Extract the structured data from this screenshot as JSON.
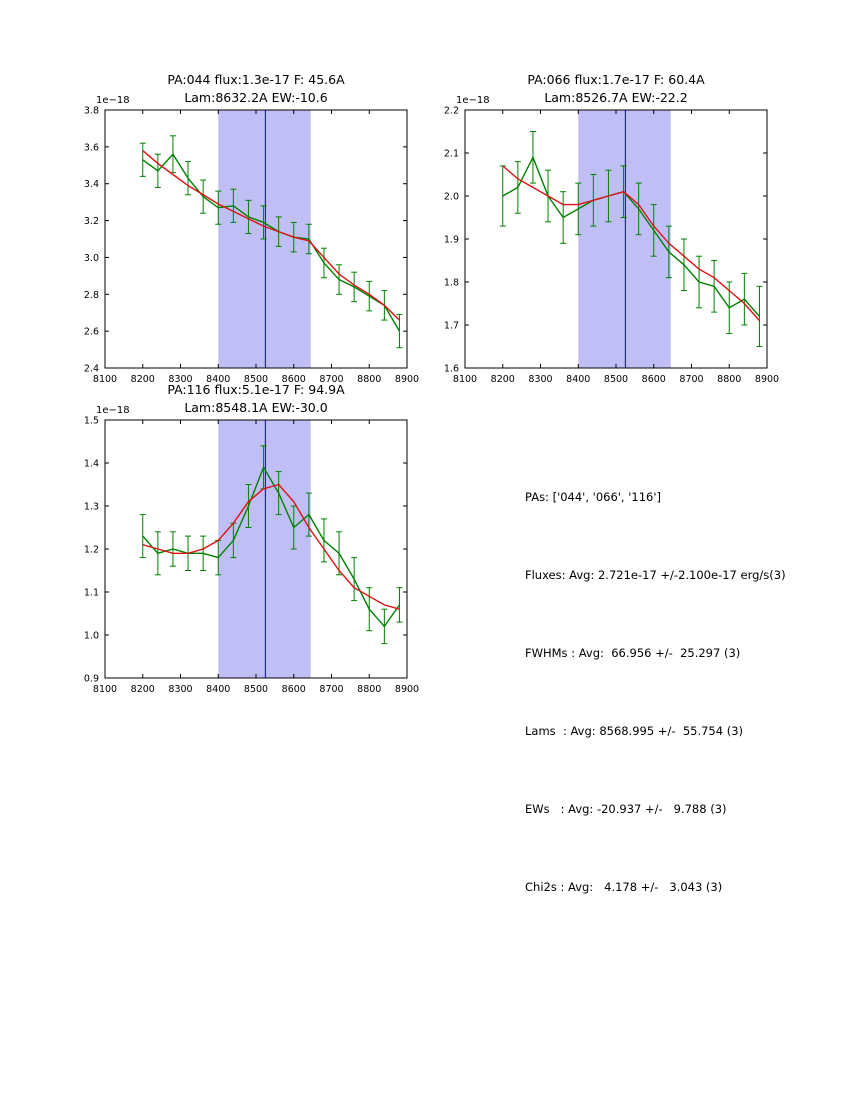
{
  "colors": {
    "band": "#bfbff5",
    "vline": "#2222bb",
    "axes": "#000000",
    "spectrum": "#008000",
    "fit": "#dd1111"
  },
  "chart_data": [
    {
      "id": "pa044",
      "type": "line",
      "title1": "PA:044 flux:1.3e-17 F: 45.6A",
      "title2": "Lam:8632.2A EW:-10.6",
      "y_offset_label": "1e−18",
      "xlabel": "",
      "ylabel": "",
      "xlim": [
        8100,
        8900
      ],
      "ylim": [
        2.4,
        3.8
      ],
      "x_ticks": [
        8100,
        8200,
        8300,
        8400,
        8500,
        8600,
        8700,
        8800,
        8900
      ],
      "y_ticks": [
        2.4,
        2.6,
        2.8,
        3.0,
        3.2,
        3.4,
        3.6,
        3.8
      ],
      "band": [
        8400,
        8645
      ],
      "vline": 8525,
      "x": [
        8200,
        8240,
        8280,
        8320,
        8360,
        8400,
        8440,
        8480,
        8520,
        8560,
        8600,
        8640,
        8680,
        8720,
        8760,
        8800,
        8840,
        8880
      ],
      "series": [
        {
          "name": "spectrum",
          "values": [
            3.53,
            3.47,
            3.56,
            3.43,
            3.33,
            3.27,
            3.28,
            3.22,
            3.19,
            3.14,
            3.11,
            3.1,
            2.97,
            2.88,
            2.84,
            2.79,
            2.74,
            2.6
          ],
          "err": [
            0.09,
            0.09,
            0.1,
            0.09,
            0.09,
            0.09,
            0.09,
            0.09,
            0.09,
            0.08,
            0.08,
            0.08,
            0.08,
            0.08,
            0.08,
            0.08,
            0.08,
            0.09
          ]
        },
        {
          "name": "fit",
          "values": [
            3.58,
            3.51,
            3.45,
            3.39,
            3.34,
            3.29,
            3.25,
            3.21,
            3.17,
            3.14,
            3.11,
            3.09,
            3.0,
            2.91,
            2.85,
            2.8,
            2.74,
            2.66
          ]
        }
      ]
    },
    {
      "id": "pa066",
      "type": "line",
      "title1": "PA:066 flux:1.7e-17 F: 60.4A",
      "title2": "Lam:8526.7A EW:-22.2",
      "y_offset_label": "1e−18",
      "xlabel": "",
      "ylabel": "",
      "xlim": [
        8100,
        8900
      ],
      "ylim": [
        1.6,
        2.2
      ],
      "x_ticks": [
        8100,
        8200,
        8300,
        8400,
        8500,
        8600,
        8700,
        8800,
        8900
      ],
      "y_ticks": [
        1.6,
        1.7,
        1.8,
        1.9,
        2.0,
        2.1,
        2.2
      ],
      "band": [
        8400,
        8645
      ],
      "vline": 8525,
      "x": [
        8200,
        8240,
        8280,
        8320,
        8360,
        8400,
        8440,
        8480,
        8520,
        8560,
        8600,
        8640,
        8680,
        8720,
        8760,
        8800,
        8840,
        8880
      ],
      "series": [
        {
          "name": "spectrum",
          "values": [
            2.0,
            2.02,
            2.09,
            2.0,
            1.95,
            1.97,
            1.99,
            2.0,
            2.01,
            1.97,
            1.92,
            1.87,
            1.84,
            1.8,
            1.79,
            1.74,
            1.76,
            1.72
          ],
          "err": [
            0.07,
            0.06,
            0.06,
            0.06,
            0.06,
            0.06,
            0.06,
            0.06,
            0.06,
            0.06,
            0.06,
            0.06,
            0.06,
            0.06,
            0.06,
            0.06,
            0.06,
            0.07
          ]
        },
        {
          "name": "fit",
          "values": [
            2.07,
            2.04,
            2.02,
            2.0,
            1.98,
            1.98,
            1.99,
            2.0,
            2.01,
            1.98,
            1.93,
            1.89,
            1.86,
            1.83,
            1.81,
            1.78,
            1.75,
            1.71
          ]
        }
      ]
    },
    {
      "id": "pa116",
      "type": "line",
      "title1": "PA:116 flux:5.1e-17 F: 94.9A",
      "title2": "Lam:8548.1A EW:-30.0",
      "y_offset_label": "1e−18",
      "xlabel": "",
      "ylabel": "",
      "xlim": [
        8100,
        8900
      ],
      "ylim": [
        0.9,
        1.5
      ],
      "x_ticks": [
        8100,
        8200,
        8300,
        8400,
        8500,
        8600,
        8700,
        8800,
        8900
      ],
      "y_ticks": [
        0.9,
        1.0,
        1.1,
        1.2,
        1.3,
        1.4,
        1.5
      ],
      "band": [
        8400,
        8645
      ],
      "vline": 8525,
      "x": [
        8200,
        8240,
        8280,
        8320,
        8360,
        8400,
        8440,
        8480,
        8520,
        8560,
        8600,
        8640,
        8680,
        8720,
        8760,
        8800,
        8840,
        8880
      ],
      "series": [
        {
          "name": "spectrum",
          "values": [
            1.23,
            1.19,
            1.2,
            1.19,
            1.19,
            1.18,
            1.22,
            1.3,
            1.39,
            1.33,
            1.25,
            1.28,
            1.22,
            1.19,
            1.13,
            1.06,
            1.02,
            1.07
          ],
          "err": [
            0.05,
            0.05,
            0.04,
            0.04,
            0.04,
            0.04,
            0.04,
            0.05,
            0.05,
            0.05,
            0.05,
            0.05,
            0.05,
            0.05,
            0.05,
            0.05,
            0.04,
            0.04
          ]
        },
        {
          "name": "fit",
          "values": [
            1.21,
            1.2,
            1.19,
            1.19,
            1.2,
            1.22,
            1.26,
            1.31,
            1.34,
            1.35,
            1.31,
            1.25,
            1.2,
            1.15,
            1.11,
            1.09,
            1.07,
            1.06
          ]
        }
      ]
    }
  ],
  "stats": {
    "lines": [
      "PAs: ['044', '066', '116']",
      "Fluxes: Avg: 2.721e-17 +/-2.100e-17 erg/s(3)",
      "FWHMs : Avg:  66.956 +/-  25.297 (3)",
      "Lams  : Avg: 8568.995 +/-  55.754 (3)",
      "EWs   : Avg: -20.937 +/-   9.788 (3)",
      "Chi2s : Avg:   4.178 +/-   3.043 (3)"
    ]
  }
}
